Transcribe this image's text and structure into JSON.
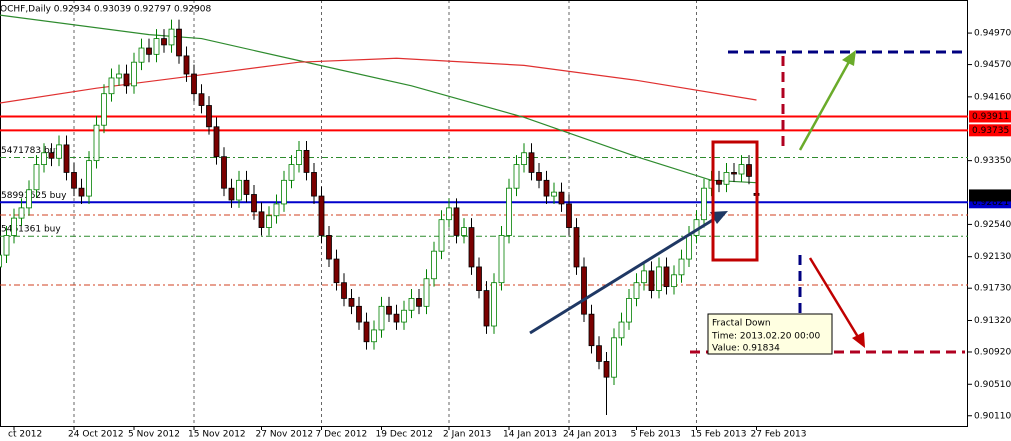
{
  "chart_data": {
    "type": "candlestick",
    "title": "OCHF,Daily  0.92934 0.93039 0.92797 0.92908",
    "categories": [
      null,
      null,
      "ct 2012",
      null,
      null,
      null,
      null,
      null,
      null,
      null,
      "24 Oct 2012",
      null,
      null,
      null,
      null,
      null,
      null,
      null,
      "5 Nov 2012",
      null,
      null,
      null,
      null,
      null,
      null,
      null,
      "15 Nov 2012",
      null,
      null,
      null,
      null,
      null,
      null,
      null,
      null,
      "27 Nov 2012",
      null,
      null,
      null,
      null,
      null,
      null,
      null,
      "7 Dec 2012",
      null,
      null,
      null,
      null,
      null,
      null,
      null,
      "19 Dec 2012",
      null,
      null,
      null,
      null,
      null,
      null,
      null,
      null,
      "2 Jan 2013",
      null,
      null,
      null,
      null,
      null,
      null,
      null,
      "14 Jan 2013",
      null,
      null,
      null,
      null,
      null,
      null,
      null,
      "24 Jan 2013",
      null,
      null,
      null,
      null,
      null,
      null,
      null,
      null,
      "5 Feb 2013",
      null,
      null,
      null,
      null,
      null,
      null,
      null,
      "15 Feb 2013",
      null,
      null,
      null,
      null,
      null,
      null,
      null,
      "27 Feb 2013"
    ],
    "open": [
      0.92,
      0.9215,
      0.924,
      0.9262,
      0.9275,
      0.9298,
      0.933,
      0.9345,
      0.9338,
      0.9355,
      0.932,
      0.93,
      0.929,
      0.9335,
      0.938,
      0.942,
      0.944,
      0.9445,
      0.943,
      0.946,
      0.9478,
      0.947,
      0.949,
      0.9482,
      0.9502,
      0.9468,
      0.9445,
      0.942,
      0.9405,
      0.9378,
      0.934,
      0.93,
      0.9285,
      0.931,
      0.9292,
      0.927,
      0.925,
      0.9265,
      0.928,
      0.931,
      0.933,
      0.9348,
      0.932,
      0.929,
      0.924,
      0.921,
      0.918,
      0.916,
      0.915,
      0.913,
      0.9105,
      0.912,
      0.915,
      0.914,
      0.913,
      0.9145,
      0.916,
      0.915,
      0.9185,
      0.922,
      0.926,
      0.9275,
      0.924,
      0.925,
      0.92,
      0.917,
      0.9125,
      0.918,
      0.924,
      0.93,
      0.933,
      0.9345,
      0.932,
      0.931,
      0.929,
      0.9295,
      0.928,
      0.925,
      0.92,
      0.914,
      0.91,
      0.908,
      0.906,
      0.911,
      0.913,
      0.916,
      0.918,
      0.9195,
      0.917,
      0.92,
      0.9175,
      0.919,
      0.921,
      0.924,
      0.926,
      0.93,
      0.931,
      0.9305,
      0.932,
      0.9318,
      0.933,
      0.92934
    ],
    "high": [
      0.9227,
      0.9252,
      0.9274,
      0.9287,
      0.931,
      0.9342,
      0.9357,
      0.9357,
      0.9367,
      0.9367,
      0.9332,
      0.9312,
      0.9347,
      0.9392,
      0.9432,
      0.9452,
      0.9457,
      0.9457,
      0.9472,
      0.949,
      0.949,
      0.9502,
      0.9502,
      0.9514,
      0.9514,
      0.948,
      0.9457,
      0.9432,
      0.9417,
      0.939,
      0.9352,
      0.9312,
      0.9322,
      0.9322,
      0.9304,
      0.9282,
      0.9277,
      0.9292,
      0.9322,
      0.9342,
      0.936,
      0.936,
      0.9332,
      0.9302,
      0.9252,
      0.9222,
      0.9192,
      0.9172,
      0.9162,
      0.9142,
      0.9132,
      0.9162,
      0.9162,
      0.9152,
      0.9157,
      0.9172,
      0.9172,
      0.9197,
      0.9232,
      0.9272,
      0.9287,
      0.9287,
      0.9262,
      0.9262,
      0.9212,
      0.9182,
      0.9192,
      0.9252,
      0.9312,
      0.9342,
      0.9357,
      0.9357,
      0.9332,
      0.9322,
      0.9307,
      0.9307,
      0.9292,
      0.9262,
      0.9212,
      0.9152,
      0.9112,
      0.9092,
      0.9122,
      0.9142,
      0.9172,
      0.9192,
      0.9207,
      0.9207,
      0.9212,
      0.9212,
      0.9202,
      0.9222,
      0.9252,
      0.9272,
      0.9312,
      0.9322,
      0.9322,
      0.9332,
      0.9332,
      0.9342,
      0.9342,
      0.93039
    ],
    "low": [
      0.919,
      0.9205,
      0.923,
      0.9252,
      0.9265,
      0.9288,
      0.932,
      0.9328,
      0.9328,
      0.931,
      0.929,
      0.928,
      0.928,
      0.9325,
      0.937,
      0.941,
      0.943,
      0.942,
      0.942,
      0.945,
      0.946,
      0.946,
      0.9472,
      0.9472,
      0.9458,
      0.9435,
      0.941,
      0.9395,
      0.9368,
      0.933,
      0.929,
      0.9275,
      0.9275,
      0.9282,
      0.926,
      0.924,
      0.924,
      0.9255,
      0.927,
      0.93,
      0.932,
      0.931,
      0.928,
      0.923,
      0.92,
      0.917,
      0.915,
      0.914,
      0.912,
      0.9095,
      0.9095,
      0.911,
      0.913,
      0.912,
      0.912,
      0.9135,
      0.914,
      0.914,
      0.9175,
      0.921,
      0.925,
      0.923,
      0.923,
      0.919,
      0.916,
      0.9115,
      0.9115,
      0.917,
      0.923,
      0.929,
      0.932,
      0.931,
      0.93,
      0.928,
      0.928,
      0.927,
      0.924,
      0.919,
      0.913,
      0.909,
      0.907,
      0.9012,
      0.905,
      0.91,
      0.912,
      0.915,
      0.917,
      0.916,
      0.916,
      0.9165,
      0.9165,
      0.918,
      0.92,
      0.923,
      0.925,
      0.929,
      0.9295,
      0.9295,
      0.9308,
      0.9308,
      0.9305,
      0.92797
    ],
    "close": [
      0.9215,
      0.924,
      0.9262,
      0.9275,
      0.9298,
      0.933,
      0.9345,
      0.9338,
      0.9355,
      0.932,
      0.93,
      0.929,
      0.9335,
      0.938,
      0.942,
      0.944,
      0.9445,
      0.943,
      0.946,
      0.9478,
      0.947,
      0.949,
      0.9482,
      0.9502,
      0.9468,
      0.9445,
      0.942,
      0.9405,
      0.9378,
      0.934,
      0.93,
      0.9285,
      0.931,
      0.9292,
      0.927,
      0.925,
      0.9265,
      0.928,
      0.931,
      0.933,
      0.9348,
      0.932,
      0.929,
      0.924,
      0.921,
      0.918,
      0.916,
      0.915,
      0.913,
      0.9105,
      0.912,
      0.915,
      0.914,
      0.913,
      0.9145,
      0.916,
      0.915,
      0.9185,
      0.922,
      0.926,
      0.9275,
      0.924,
      0.925,
      0.92,
      0.917,
      0.9125,
      0.918,
      0.924,
      0.93,
      0.933,
      0.9345,
      0.932,
      0.931,
      0.929,
      0.9295,
      0.928,
      0.925,
      0.92,
      0.914,
      0.91,
      0.908,
      0.906,
      0.911,
      0.913,
      0.916,
      0.918,
      0.9195,
      0.917,
      0.92,
      0.9175,
      0.919,
      0.921,
      0.924,
      0.926,
      0.93,
      0.931,
      0.9305,
      0.932,
      0.9318,
      0.933,
      0.9315,
      0.92908
    ],
    "up_color": "#ffffff",
    "up_border": "#008000",
    "down_color": "#7a0000",
    "wick_color": "#000000",
    "lines": [
      {
        "color": "#2e8b2e",
        "x": [
          0,
          20,
          27,
          40,
          55,
          70,
          85,
          95,
          101
        ],
        "values": [
          0.952,
          0.9495,
          0.949,
          0.9462,
          0.943,
          0.939,
          0.934,
          0.931,
          0.9307
        ]
      },
      {
        "color": "#e03030",
        "x": [
          0,
          13,
          27,
          40,
          53,
          70,
          85,
          101
        ],
        "values": [
          0.9408,
          0.9427,
          0.9444,
          0.946,
          0.9465,
          0.9456,
          0.9437,
          0.9412
        ]
      }
    ],
    "levels": [
      {
        "value": 0.93911,
        "color": "#ff0000"
      },
      {
        "value": 0.93735,
        "color": "#ff0000"
      },
      {
        "value": 0.92821,
        "color": "#0000cc",
        "label": "58991625 buy"
      }
    ],
    "order_lines": [
      {
        "value": 0.9339,
        "color": "#2e8b2e",
        "label": "5471783 buy li"
      },
      {
        "value": 0.9239,
        "color": "#2e8b2e",
        "label": "5461361 buy"
      },
      {
        "value": 0.9266,
        "color": "#d04020"
      },
      {
        "value": 0.9177,
        "color": "#d04020"
      }
    ],
    "ylim": [
      0.8998,
      0.9539
    ],
    "yticks": [
      {
        "value": 0.9497,
        "label": "0.94970"
      },
      {
        "value": 0.9457,
        "label": "0.94570"
      },
      {
        "value": 0.9416,
        "label": "0.94160"
      },
      {
        "value": 0.9335,
        "label": "0.93350"
      },
      {
        "value": 0.9254,
        "label": "0.92540"
      },
      {
        "value": 0.9213,
        "label": "0.92130"
      },
      {
        "value": 0.9173,
        "label": "0.91730"
      },
      {
        "value": 0.9132,
        "label": "0.91320"
      },
      {
        "value": 0.9092,
        "label": "0.90920"
      },
      {
        "value": 0.9051,
        "label": "0.90510"
      },
      {
        "value": 0.9011,
        "label": "0.90110"
      }
    ],
    "tooltip": {
      "title": "Fractal Down",
      "time": "Time: 2013.02.20 00:00",
      "value": "Value: 0.91834"
    }
  }
}
